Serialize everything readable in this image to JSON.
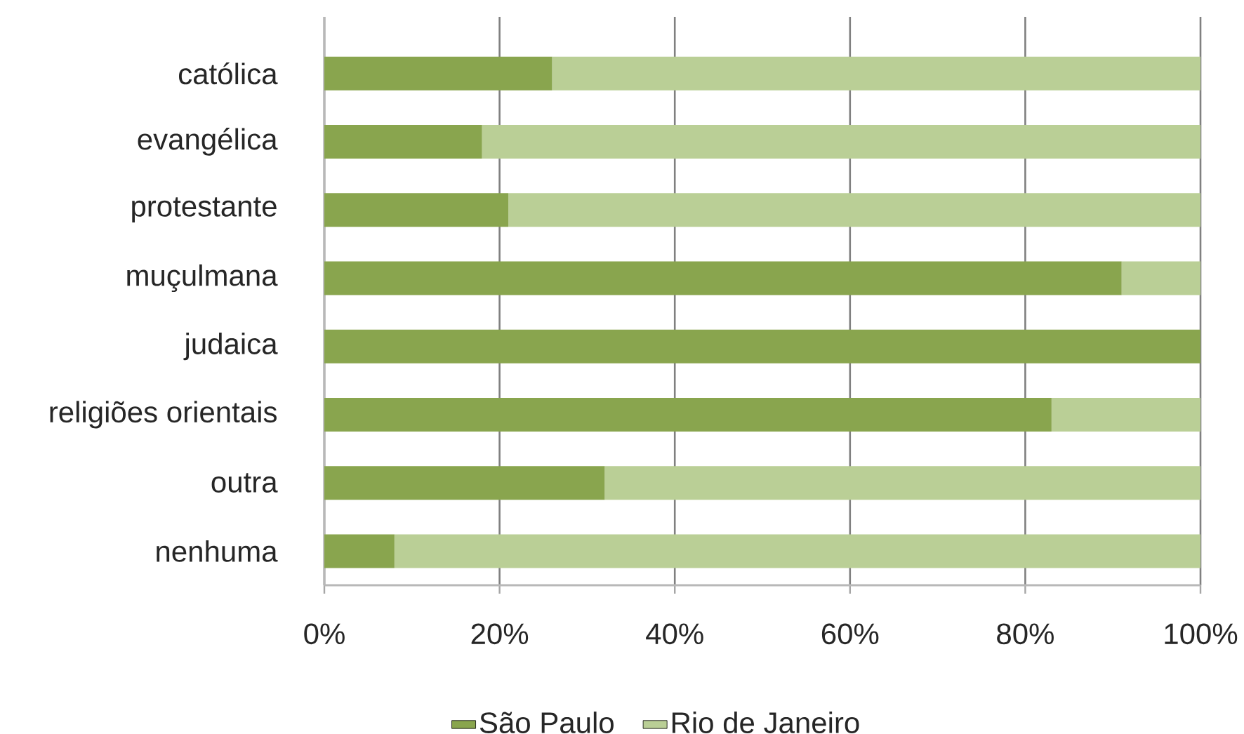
{
  "chart_data": {
    "type": "bar",
    "orientation": "horizontal",
    "stacked": true,
    "categories": [
      "católica",
      "evangélica",
      "protestante",
      "muçulmana",
      "judaica",
      "religiões orientais",
      "outra",
      "nenhuma"
    ],
    "series": [
      {
        "name": "São Paulo",
        "color": "#89a54e",
        "values": [
          26,
          18,
          21,
          91,
          100,
          83,
          32,
          8
        ]
      },
      {
        "name": "Rio de Janeiro",
        "color": "#bacf96",
        "values": [
          74,
          82,
          79,
          9,
          0,
          17,
          68,
          92
        ]
      }
    ],
    "xlim": [
      0,
      100
    ],
    "xticks": [
      {
        "value": 0,
        "label": "0%"
      },
      {
        "value": 20,
        "label": "20%"
      },
      {
        "value": 40,
        "label": "40%"
      },
      {
        "value": 60,
        "label": "60%"
      },
      {
        "value": 80,
        "label": "80%"
      },
      {
        "value": 100,
        "label": "100%"
      }
    ],
    "grid": "x",
    "legend": "bottom"
  }
}
